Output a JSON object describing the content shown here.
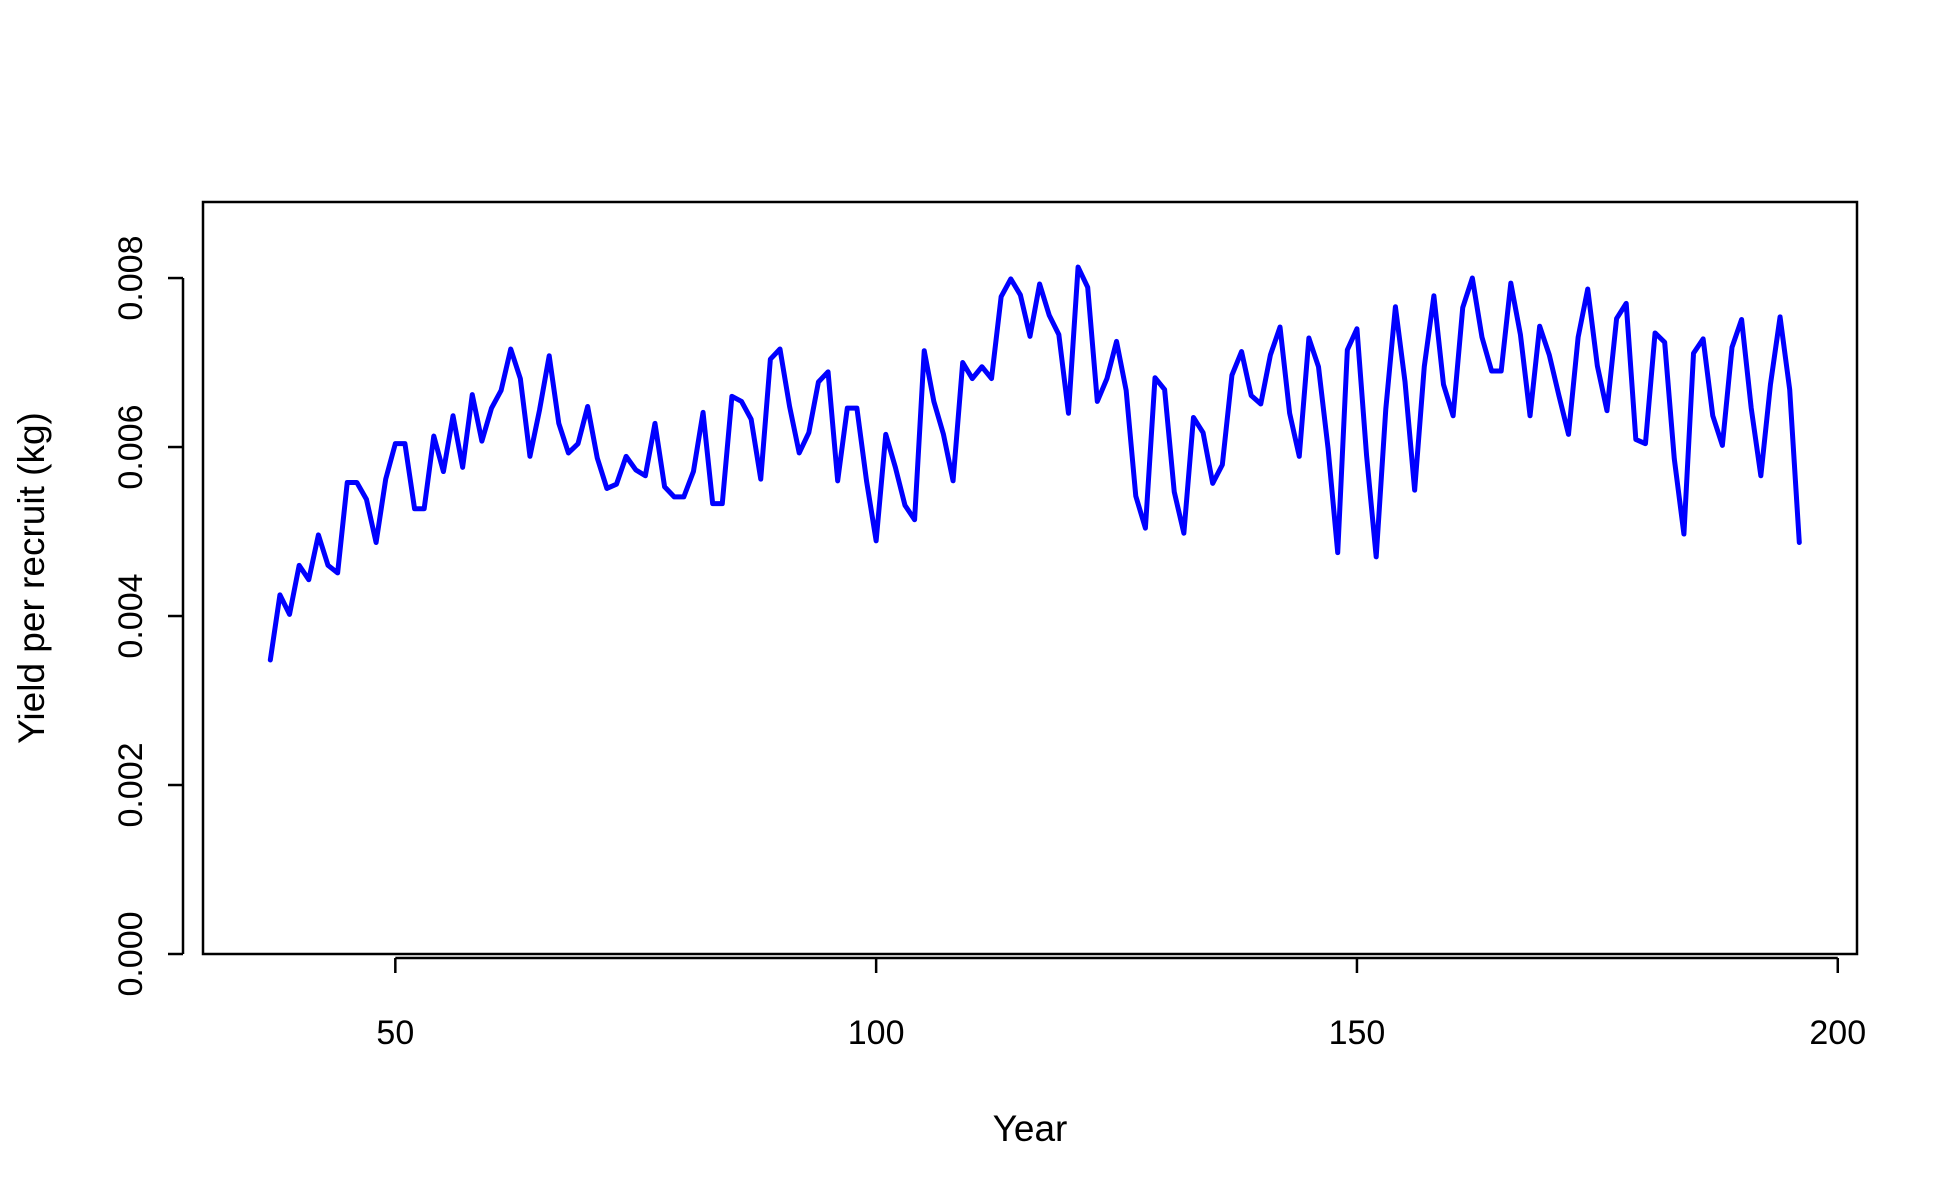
{
  "chart_data": {
    "type": "line",
    "title": "",
    "xlabel": "Year",
    "ylabel": "Yield per recruit (kg)",
    "xlim": [
      30,
      202
    ],
    "ylim": [
      0,
      0.0089
    ],
    "x_ticks": [
      50,
      100,
      150,
      200
    ],
    "y_ticks": [
      0.0,
      0.002,
      0.004,
      0.006,
      0.008
    ],
    "y_tick_labels": [
      "0.000",
      "0.002",
      "0.004",
      "0.006",
      "0.008"
    ],
    "grid": false,
    "legend": "none",
    "series": [
      {
        "color": "#0000ff",
        "x_start": 37,
        "x_step": 1,
        "values": [
          0.00348,
          0.00425,
          0.00402,
          0.0046,
          0.00443,
          0.00496,
          0.0046,
          0.00451,
          0.00558,
          0.00558,
          0.00538,
          0.00487,
          0.00562,
          0.00604,
          0.00604,
          0.00527,
          0.00527,
          0.00613,
          0.00571,
          0.00637,
          0.00576,
          0.00662,
          0.00607,
          0.00646,
          0.00667,
          0.00716,
          0.00681,
          0.00589,
          0.00644,
          0.00708,
          0.00628,
          0.00593,
          0.00604,
          0.00648,
          0.00587,
          0.00551,
          0.00556,
          0.00589,
          0.00573,
          0.00566,
          0.00628,
          0.00553,
          0.00541,
          0.00541,
          0.00571,
          0.00641,
          0.00533,
          0.00533,
          0.0066,
          0.00654,
          0.00633,
          0.00562,
          0.00704,
          0.00716,
          0.00648,
          0.00593,
          0.00617,
          0.00677,
          0.00689,
          0.0056,
          0.00646,
          0.00646,
          0.0056,
          0.00489,
          0.00615,
          0.00576,
          0.00531,
          0.00514,
          0.00714,
          0.00654,
          0.00615,
          0.0056,
          0.007,
          0.00681,
          0.00695,
          0.00681,
          0.00778,
          0.00799,
          0.0078,
          0.00731,
          0.00793,
          0.00756,
          0.00733,
          0.0064,
          0.00813,
          0.00789,
          0.00654,
          0.00681,
          0.00725,
          0.00667,
          0.00542,
          0.00504,
          0.00682,
          0.00668,
          0.00547,
          0.00498,
          0.00635,
          0.00617,
          0.00557,
          0.00579,
          0.00685,
          0.00713,
          0.00661,
          0.00651,
          0.00709,
          0.00742,
          0.0064,
          0.00589,
          0.00729,
          0.00695,
          0.00598,
          0.00475,
          0.00715,
          0.0074,
          0.0059,
          0.0047,
          0.00645,
          0.00766,
          0.00677,
          0.00549,
          0.00695,
          0.00779,
          0.00674,
          0.00637,
          0.00765,
          0.008,
          0.0073,
          0.0069,
          0.0069,
          0.00794,
          0.00733,
          0.00637,
          0.00743,
          0.00709,
          0.00661,
          0.00615,
          0.0073,
          0.00787,
          0.00696,
          0.00643,
          0.00752,
          0.0077,
          0.00609,
          0.00604,
          0.00735,
          0.00724,
          0.00586,
          0.00497,
          0.00711,
          0.00728,
          0.00637,
          0.00602,
          0.00718,
          0.00751,
          0.00646,
          0.00566,
          0.00674,
          0.00754,
          0.00668,
          0.00487
        ]
      }
    ]
  }
}
